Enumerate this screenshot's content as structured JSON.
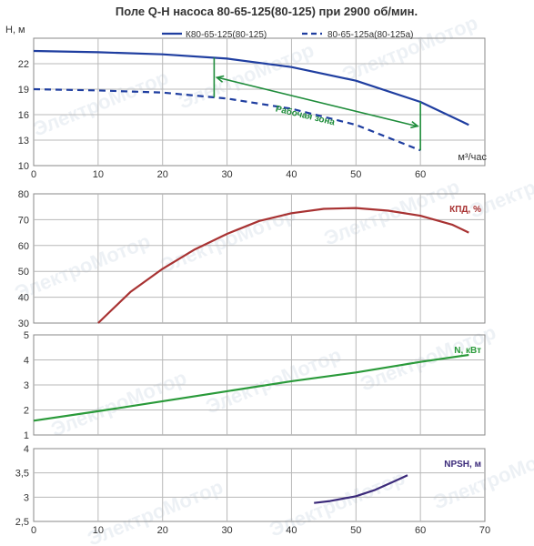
{
  "title": "Поле Q-H насоса 80-65-125(80-125) при 2900 об/мин.",
  "watermark": "ЭлектроМотор",
  "chart_data": [
    {
      "id": "qh",
      "type": "line",
      "ylabel": "H, м",
      "xlabel": "м³/час",
      "xlim": [
        0,
        70
      ],
      "ylim": [
        10,
        25
      ],
      "yticks": [
        10,
        13,
        16,
        19,
        22
      ],
      "xticks": [
        0,
        10,
        20,
        30,
        40,
        50,
        60
      ],
      "grid": true,
      "legend_position": "top",
      "series": [
        {
          "name": "К80-65-125(80-125)",
          "style": "solid",
          "color": "#1f3ea0",
          "x": [
            0,
            10,
            20,
            30,
            40,
            50,
            60,
            67.5
          ],
          "y": [
            23.5,
            23.35,
            23.1,
            22.6,
            21.6,
            20.0,
            17.5,
            14.8
          ]
        },
        {
          "name": "80-65-125а(80-125а)",
          "style": "dashed",
          "color": "#1f3ea0",
          "x": [
            0,
            10,
            20,
            30,
            40,
            50,
            56,
            60
          ],
          "y": [
            19.0,
            18.85,
            18.6,
            17.9,
            16.7,
            14.8,
            13.0,
            11.8
          ]
        }
      ],
      "annotation": {
        "text": "Рабочая зона",
        "color": "#1e8c3a",
        "zone_q": [
          28,
          60
        ]
      }
    },
    {
      "id": "eff",
      "type": "line",
      "label": "КПД, %",
      "xlim": [
        0,
        70
      ],
      "ylim": [
        30,
        80
      ],
      "yticks": [
        30,
        40,
        50,
        60,
        70,
        80
      ],
      "grid": true,
      "series": [
        {
          "name": "КПД, %",
          "color": "#a83232",
          "x": [
            10,
            15,
            20,
            25,
            30,
            35,
            40,
            45,
            50,
            55,
            60,
            65,
            67.5
          ],
          "y": [
            30,
            42,
            51,
            58.5,
            64.5,
            69.5,
            72.5,
            74.2,
            74.5,
            73.5,
            71.5,
            68,
            65
          ]
        }
      ]
    },
    {
      "id": "power",
      "type": "line",
      "label": "N, кВт",
      "xlim": [
        0,
        70
      ],
      "ylim": [
        1,
        5
      ],
      "yticks": [
        1,
        2,
        3,
        4,
        5
      ],
      "grid": true,
      "series": [
        {
          "name": "N, кВт",
          "color": "#2a9a3a",
          "x": [
            0,
            10,
            20,
            30,
            40,
            50,
            60,
            67.5
          ],
          "y": [
            1.57,
            1.95,
            2.35,
            2.75,
            3.15,
            3.5,
            3.92,
            4.2
          ]
        }
      ]
    },
    {
      "id": "npsh",
      "type": "line",
      "label": "NPSH, м",
      "xlim": [
        0,
        70
      ],
      "ylim": [
        2.5,
        4
      ],
      "yticks": [
        2.5,
        3,
        3.5,
        4
      ],
      "yticklabels": [
        "2,5",
        "3",
        "3,5",
        "4"
      ],
      "xticks": [
        0,
        10,
        20,
        30,
        40,
        50,
        60,
        70
      ],
      "grid": true,
      "series": [
        {
          "name": "NPSH, м",
          "color": "#3b2a7a",
          "x": [
            43.5,
            46,
            50,
            53,
            56,
            58
          ],
          "y": [
            2.88,
            2.92,
            3.02,
            3.15,
            3.33,
            3.45
          ]
        }
      ]
    }
  ]
}
